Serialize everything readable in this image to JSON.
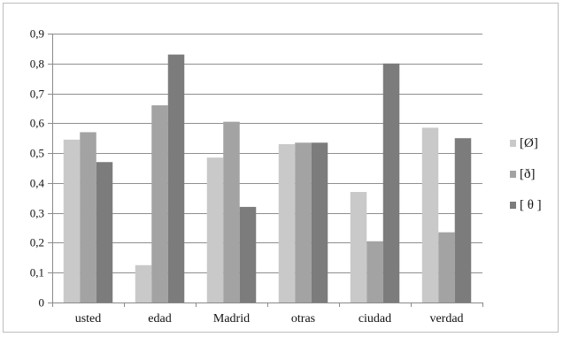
{
  "chart_data": {
    "type": "bar",
    "title": "",
    "xlabel": "",
    "ylabel": "",
    "categories": [
      "usted",
      "edad",
      "Madrid",
      "otras",
      "ciudad",
      "verdad"
    ],
    "series": [
      {
        "name": "[Ø]",
        "color": "#c9c9c9",
        "values": [
          0.545,
          0.125,
          0.485,
          0.53,
          0.37,
          0.585
        ]
      },
      {
        "name": "[ð]",
        "color": "#a3a3a3",
        "values": [
          0.57,
          0.66,
          0.605,
          0.535,
          0.205,
          0.235
        ]
      },
      {
        "name": "[ θ ]",
        "color": "#7c7c7c",
        "values": [
          0.47,
          0.83,
          0.32,
          0.535,
          0.8,
          0.55
        ]
      }
    ],
    "ylim": [
      0,
      0.9
    ],
    "yticks": [
      "0",
      "0,1",
      "0,2",
      "0,3",
      "0,4",
      "0,5",
      "0,6",
      "0,7",
      "0,8",
      "0,9"
    ],
    "ytick_values": [
      0,
      0.1,
      0.2,
      0.3,
      0.4,
      0.5,
      0.6,
      0.7,
      0.8,
      0.9
    ],
    "grid": true,
    "legend_position": "right"
  }
}
